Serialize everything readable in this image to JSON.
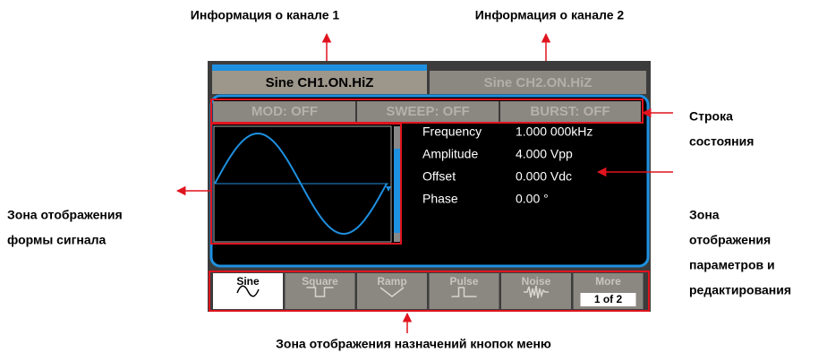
{
  "annotations": {
    "channel1_info": "Информация о канале 1",
    "channel2_info": "Информация о канале 2",
    "status_bar": [
      "Строка",
      "состояния"
    ],
    "waveform_zone": [
      "Зона отображения",
      "формы сигнала"
    ],
    "params_zone": [
      "Зона",
      "отображения",
      "параметров и",
      "редактирования"
    ],
    "menu_zone": "Зона отображения назначений кнопок меню"
  },
  "screen": {
    "tabs": [
      "Sine CH1.ON.HiZ",
      "Sine CH2.ON.HiZ"
    ],
    "status": [
      "MOD: OFF",
      "SWEEP: OFF",
      "BURST: OFF"
    ],
    "params": [
      {
        "label": "Frequency",
        "value": "1.000 000kHz"
      },
      {
        "label": "Amplitude",
        "value": "4.000 Vpp"
      },
      {
        "label": "Offset",
        "value": "0.000 Vdc"
      },
      {
        "label": "Phase",
        "value": "0.00 °"
      }
    ],
    "menu": [
      "Sine",
      "Square",
      "Ramp",
      "Pulse",
      "Noise",
      "More"
    ],
    "menu_page": "1 of 2"
  }
}
